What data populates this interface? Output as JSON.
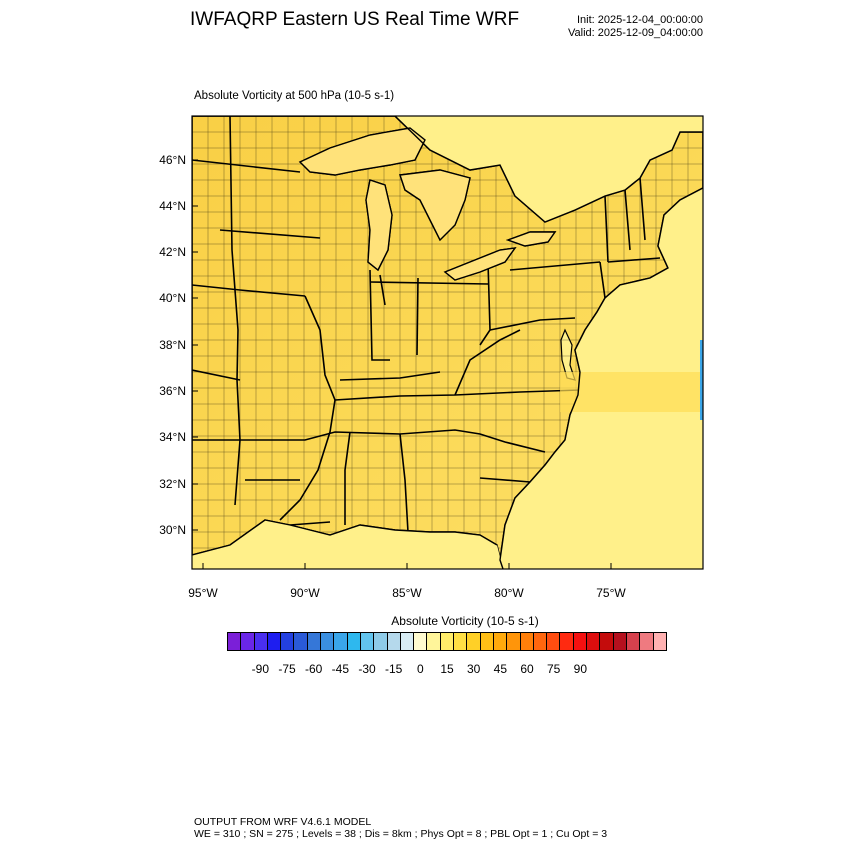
{
  "header": {
    "title": "IWFAQRP Eastern US Real Time WRF",
    "init": "Init: 2025-12-04_00:00:00",
    "valid": "Valid: 2025-12-09_04:00:00"
  },
  "panel": {
    "title": "Absolute Vorticity at 500 hPa   (10-5 s-1)"
  },
  "axes": {
    "lat_labels": [
      "46°N",
      "44°N",
      "42°N",
      "40°N",
      "38°N",
      "36°N",
      "34°N",
      "32°N",
      "30°N"
    ],
    "lon_labels": [
      "95°W",
      "90°W",
      "85°W",
      "80°W",
      "75°W"
    ]
  },
  "colorbar": {
    "title": "Absolute Vorticity  (10-5 s-1)",
    "labels": [
      "-90",
      "-75",
      "-60",
      "-45",
      "-30",
      "-15",
      "0",
      "15",
      "30",
      "45",
      "60",
      "75",
      "90"
    ],
    "colors": [
      "#7b1fd8",
      "#6a26e8",
      "#4a2ff0",
      "#1e1ef0",
      "#2340e0",
      "#2a5ad8",
      "#3577d8",
      "#3a8fe0",
      "#3aa6ea",
      "#2eb8ee",
      "#62c4ee",
      "#8ecbe8",
      "#b5d9ec",
      "#d8ecf4",
      "#fffbd0",
      "#fff59a",
      "#ffec6a",
      "#ffdf44",
      "#ffd027",
      "#ffbf16",
      "#ffaa0c",
      "#ff950a",
      "#ff7f0a",
      "#ff660e",
      "#ff4d10",
      "#ff2a10",
      "#f51010",
      "#dd0e0e",
      "#c40c0c",
      "#b5101e",
      "#d6414d",
      "#ef7a80",
      "#ffb1b1"
    ]
  },
  "map": {
    "background_color": "#fff08a",
    "land_color": "#fbd64a"
  },
  "footer": {
    "line1": "OUTPUT FROM WRF V4.6.1 MODEL",
    "line2": "WE = 310 ; SN = 275 ; Levels = 38 ; Dis = 8km ; Phys Opt = 8 ; PBL Opt = 1 ; Cu Opt = 3"
  }
}
